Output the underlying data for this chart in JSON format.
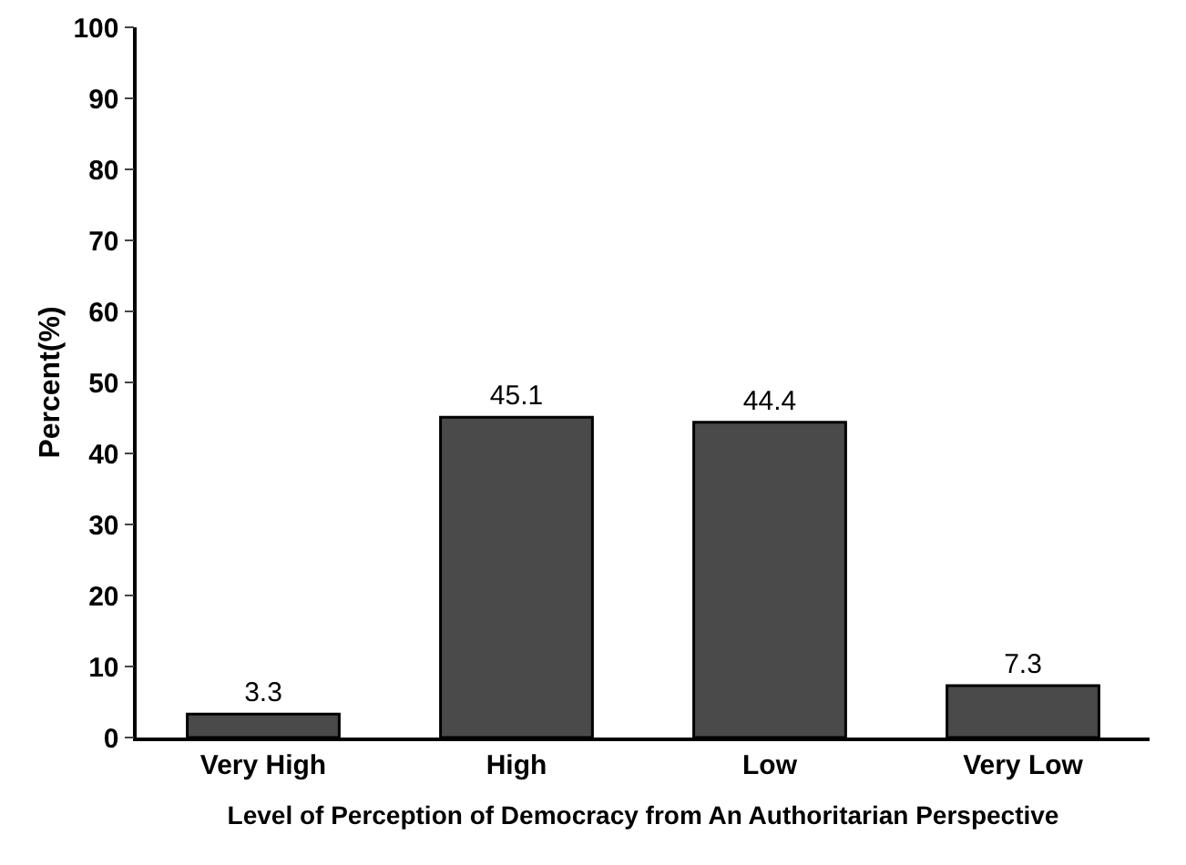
{
  "chart_data": {
    "type": "bar",
    "xlabel": "Level of Perception of Democracy from An Authoritarian Perspective",
    "ylabel": "Percent(%)",
    "categories": [
      "Very High",
      "High",
      "Low",
      "Very Low"
    ],
    "values": [
      3.3,
      45.1,
      44.4,
      7.3
    ],
    "color": "#4a4a4a",
    "ylim": [
      0,
      100
    ],
    "yticks": [
      0,
      10,
      20,
      30,
      40,
      50,
      60,
      70,
      80,
      90,
      100
    ],
    "grid": false,
    "data_labels": true
  }
}
